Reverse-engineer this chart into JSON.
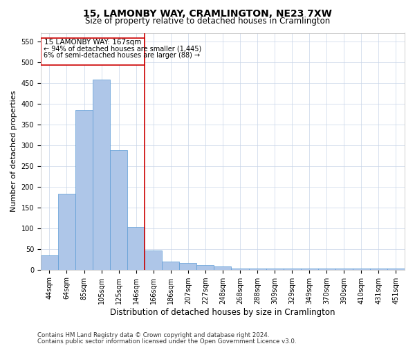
{
  "title": "15, LAMONBY WAY, CRAMLINGTON, NE23 7XW",
  "subtitle": "Size of property relative to detached houses in Cramlington",
  "xlabel": "Distribution of detached houses by size in Cramlington",
  "ylabel": "Number of detached properties",
  "categories": [
    "44sqm",
    "64sqm",
    "85sqm",
    "105sqm",
    "125sqm",
    "146sqm",
    "166sqm",
    "186sqm",
    "207sqm",
    "227sqm",
    "248sqm",
    "268sqm",
    "288sqm",
    "309sqm",
    "329sqm",
    "349sqm",
    "370sqm",
    "390sqm",
    "410sqm",
    "431sqm",
    "451sqm"
  ],
  "values": [
    35,
    183,
    385,
    457,
    288,
    103,
    47,
    20,
    17,
    12,
    8,
    3,
    3,
    3,
    3,
    3,
    3,
    3,
    3,
    3,
    3
  ],
  "bar_color": "#aec6e8",
  "bar_edge_color": "#5b9bd5",
  "vline_x_index": 6,
  "vline_color": "#cc0000",
  "annotation_text_line1": "15 LAMONBY WAY: 167sqm",
  "annotation_text_line2": "← 94% of detached houses are smaller (1,445)",
  "annotation_text_line3": "6% of semi-detached houses are larger (88) →",
  "annotation_box_color": "#cc0000",
  "ylim": [
    0,
    570
  ],
  "yticks": [
    0,
    50,
    100,
    150,
    200,
    250,
    300,
    350,
    400,
    450,
    500,
    550
  ],
  "footer_line1": "Contains HM Land Registry data © Crown copyright and database right 2024.",
  "footer_line2": "Contains public sector information licensed under the Open Government Licence v3.0.",
  "bg_color": "#ffffff",
  "grid_color": "#c8d4e8",
  "title_fontsize": 10,
  "subtitle_fontsize": 8.5,
  "tick_fontsize": 7,
  "ylabel_fontsize": 8,
  "xlabel_fontsize": 8.5
}
